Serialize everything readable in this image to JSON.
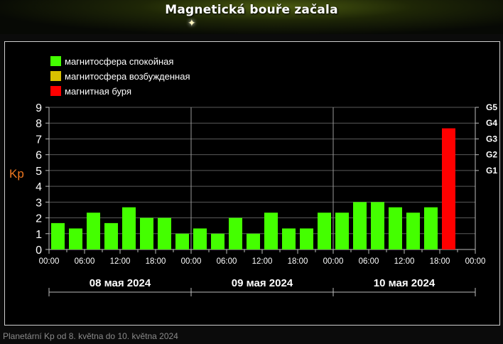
{
  "header": {
    "title": "Magnetická bouře začala"
  },
  "caption": "Planetární Kp od 8. května do 10. května 2024",
  "colors": {
    "quiet": "#44ff00",
    "active": "#d8c000",
    "storm": "#ff0000",
    "kp_label": "#f07820"
  },
  "chart_data": {
    "type": "bar",
    "ylabel": "Kp",
    "ylim": [
      0,
      9
    ],
    "y_ticks": [
      "0",
      "1",
      "2",
      "3",
      "4",
      "5",
      "6",
      "7",
      "8",
      "9"
    ],
    "right_ticks": [
      {
        "label": "G1",
        "y": 5
      },
      {
        "label": "G2",
        "y": 6
      },
      {
        "label": "G3",
        "y": 7
      },
      {
        "label": "G4",
        "y": 8
      },
      {
        "label": "G5",
        "y": 9
      }
    ],
    "legend": [
      {
        "label": "магнитосфера спокойная",
        "color": "#44ff00"
      },
      {
        "label": "магнитосфера возбужденная",
        "color": "#d8c000"
      },
      {
        "label": "магнитная буря",
        "color": "#ff0000"
      }
    ],
    "days": [
      {
        "label": "08 мая 2024",
        "x_ticks": [
          "00:00",
          "06:00",
          "12:00",
          "18:00",
          "00:00"
        ],
        "values": [
          1.67,
          1.33,
          2.33,
          1.67,
          2.67,
          2.0,
          2.0,
          1.0
        ],
        "colors": [
          "quiet",
          "quiet",
          "quiet",
          "quiet",
          "quiet",
          "quiet",
          "quiet",
          "quiet"
        ]
      },
      {
        "label": "09 мая 2024",
        "x_ticks": [
          "00:00",
          "06:00",
          "12:00",
          "18:00",
          "00:00"
        ],
        "values": [
          1.33,
          1.0,
          2.0,
          1.0,
          2.33,
          1.33,
          1.33,
          2.33
        ],
        "colors": [
          "quiet",
          "quiet",
          "quiet",
          "quiet",
          "quiet",
          "quiet",
          "quiet",
          "quiet"
        ]
      },
      {
        "label": "10 мая 2024",
        "x_ticks": [
          "00:00",
          "06:00",
          "12:00",
          "18:00",
          "00:00"
        ],
        "values": [
          2.33,
          3.0,
          3.0,
          2.67,
          2.33,
          2.67,
          7.67
        ],
        "colors": [
          "quiet",
          "quiet",
          "quiet",
          "quiet",
          "quiet",
          "quiet",
          "storm"
        ]
      }
    ]
  }
}
